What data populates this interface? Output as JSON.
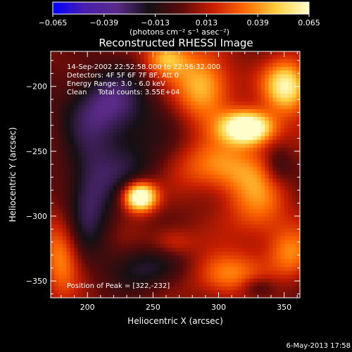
{
  "chart_data": {
    "type": "heatmap",
    "title": "Reconstructed RHESSI Image",
    "xlabel": "Heliocentric X (arcsec)",
    "ylabel": "Heliocentric Y (arcsec)",
    "xlim": [
      172,
      362
    ],
    "ylim": [
      -363,
      -173
    ],
    "x_ticks": [
      200,
      250,
      300,
      350
    ],
    "y_ticks": [
      -200,
      -250,
      -300,
      -350
    ],
    "colorbar": {
      "min": -0.065,
      "max": 0.065,
      "ticks": [
        "-0.065",
        "-0.039",
        "-0.013",
        "0.013",
        "0.039",
        "0.065"
      ],
      "label": "(photons cm⁻² s⁻¹ asec⁻²)",
      "colors": [
        "#0000ff",
        "#4a1fae",
        "#5a2a88",
        "#141014",
        "#5a0a0a",
        "#c81e00",
        "#ff6a00",
        "#ffd040",
        "#ffffcc"
      ]
    },
    "annotations": {
      "time_range": "14-Sep-2002 22:52:58.000 to 22:56:32.000",
      "detectors": "Detectors: 4F 5F 6F 7F 8F, Att 0",
      "energy_range": "Energy Range: 3.0 - 6.0 keV",
      "clean_counts": "Clean     Total counts: 3.55E+04",
      "peak_position": "Position of Peak = [322,-232]"
    },
    "blobs": [
      {
        "x": 240,
        "y": -285,
        "sx": 9,
        "sy": 8,
        "amp": 0.085
      },
      {
        "x": 322,
        "y": -232,
        "sx": 14,
        "sy": 9,
        "amp": 0.085
      },
      {
        "x": 352,
        "y": -200,
        "sx": 12,
        "sy": 14,
        "amp": 0.06
      },
      {
        "x": 288,
        "y": -200,
        "sx": 15,
        "sy": 18,
        "amp": 0.045
      },
      {
        "x": 260,
        "y": -178,
        "sx": 12,
        "sy": 10,
        "amp": 0.04
      },
      {
        "x": 300,
        "y": -262,
        "sx": 22,
        "sy": 14,
        "amp": 0.035
      },
      {
        "x": 330,
        "y": -290,
        "sx": 16,
        "sy": 22,
        "amp": 0.03
      },
      {
        "x": 305,
        "y": -345,
        "sx": 18,
        "sy": 12,
        "amp": 0.035
      },
      {
        "x": 355,
        "y": -330,
        "sx": 12,
        "sy": 14,
        "amp": 0.03
      },
      {
        "x": 180,
        "y": -330,
        "sx": 10,
        "sy": 22,
        "amp": 0.035
      },
      {
        "x": 265,
        "y": -320,
        "sx": 12,
        "sy": 8,
        "amp": 0.02
      },
      {
        "x": 230,
        "y": -260,
        "sx": 22,
        "sy": 20,
        "amp": -0.02
      },
      {
        "x": 215,
        "y": -215,
        "sx": 24,
        "sy": 20,
        "amp": -0.035
      },
      {
        "x": 200,
        "y": -290,
        "sx": 14,
        "sy": 30,
        "amp": -0.03
      },
      {
        "x": 250,
        "y": -340,
        "sx": 20,
        "sy": 12,
        "amp": -0.025
      },
      {
        "x": 345,
        "y": -262,
        "sx": 8,
        "sy": 10,
        "amp": -0.02
      },
      {
        "x": 330,
        "y": -355,
        "sx": 10,
        "sy": 6,
        "amp": -0.02
      }
    ]
  },
  "footer": {
    "date_stamp": "6-May-2013 17:58"
  }
}
